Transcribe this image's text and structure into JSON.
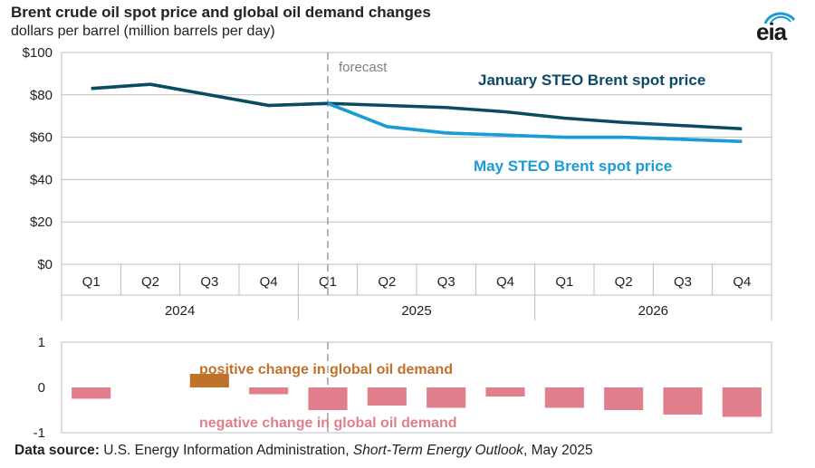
{
  "header": {
    "title": "Brent crude oil spot price and global oil demand changes",
    "subtitle": "dollars per barrel (million barrels per day)"
  },
  "logo": {
    "text": "eia",
    "name": "eia-logo"
  },
  "source": {
    "label": "Data source:",
    "text": " U.S. Energy Information Administration, ",
    "publication": "Short-Term Energy Outlook",
    "date": ", May 2025"
  },
  "colors": {
    "january_series": "#0b4a62",
    "may_series": "#1c9bd6",
    "positive_bar": "#c0722a",
    "negative_bar": "#e07f8b",
    "grid": "#bdbdbd",
    "forecast_line": "#9e9e9e"
  },
  "chart_data": [
    {
      "type": "line",
      "quarters": [
        "Q1",
        "Q2",
        "Q3",
        "Q4",
        "Q1",
        "Q2",
        "Q3",
        "Q4",
        "Q1",
        "Q2",
        "Q3",
        "Q4"
      ],
      "years": [
        "2024",
        "2025",
        "2026"
      ],
      "y_ticks": [
        "$0",
        "$20",
        "$40",
        "$60",
        "$80",
        "$100"
      ],
      "ylim": [
        0,
        100
      ],
      "forecast_label": "forecast",
      "forecast_start_index": 4.5,
      "series": [
        {
          "name": "January STEO Brent spot price",
          "values": [
            83,
            85,
            80,
            75,
            76,
            75,
            74,
            72,
            69,
            67,
            65.5,
            64
          ]
        },
        {
          "name": "May STEO Brent spot price",
          "values": [
            83,
            85,
            80,
            75,
            76,
            65,
            62,
            61,
            60,
            60,
            59,
            58
          ]
        }
      ],
      "grid": true
    },
    {
      "type": "bar",
      "categories": [
        "Q1 2024",
        "Q2 2024",
        "Q3 2024",
        "Q4 2024",
        "Q1 2025",
        "Q2 2025",
        "Q3 2025",
        "Q4 2025",
        "Q1 2026",
        "Q2 2026",
        "Q3 2026",
        "Q4 2026"
      ],
      "values": [
        -0.25,
        0,
        0.3,
        -0.15,
        -0.5,
        -0.4,
        -0.45,
        -0.2,
        -0.45,
        -0.5,
        -0.6,
        -0.65
      ],
      "y_ticks": [
        "-1",
        "0",
        "1"
      ],
      "ylim": [
        -1,
        1
      ],
      "annotations": {
        "positive": "positive change in global oil demand",
        "negative": "negative change in global oil demand"
      }
    }
  ]
}
